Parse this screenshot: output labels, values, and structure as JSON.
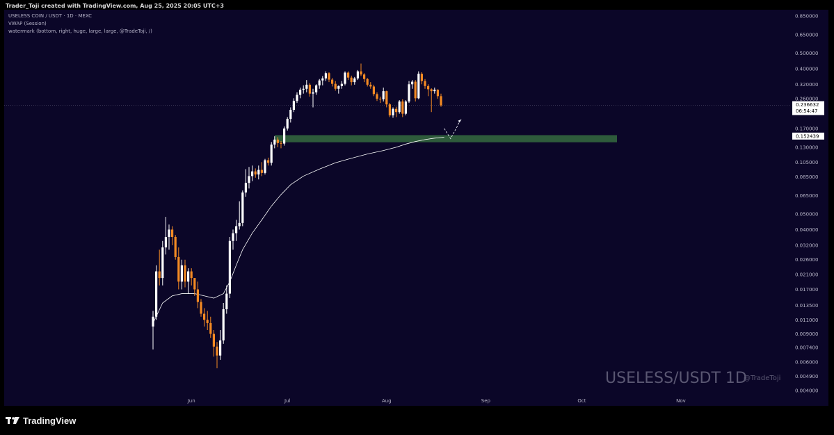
{
  "header": {
    "credit": "Trader_Toji created with TradingView.com, Aug 25, 2025 20:05 UTC+3"
  },
  "legend": {
    "line1": "USELESS COIN / USDT · 1D · MEXC",
    "line2": "VWAP (Session)",
    "line3": "watermark (bottom, right, huge, large, large, @TradeToji, /)"
  },
  "watermark": {
    "main": "USELESS/USDT 1D",
    "handle": "@TradeToji"
  },
  "branding": {
    "logo_text": "TradingView"
  },
  "price_labels": {
    "current": "0.236632",
    "countdown": "06:54:47",
    "level": "0.152439"
  },
  "colors": {
    "background": "#0b0628",
    "up": "#ffffff",
    "down": "#f48a23",
    "vwap": "#ffffff",
    "zone": "#2e5b3b",
    "axis_text": "#b8b6c8"
  },
  "chart_data": {
    "type": "candlestick",
    "symbol": "USELESS COIN / USDT",
    "timeframe": "1D",
    "exchange": "MEXC",
    "y_scale": "log",
    "y_ticks": [
      0.85,
      0.65,
      0.5,
      0.4,
      0.32,
      0.26,
      0.17,
      0.13,
      0.105,
      0.085,
      0.065,
      0.05,
      0.04,
      0.032,
      0.026,
      0.021,
      0.017,
      0.0135,
      0.011,
      0.009,
      0.0074,
      0.006,
      0.0049,
      0.004
    ],
    "y_tick_labels": [
      "0.850000",
      "0.650000",
      "0.500000",
      "0.400000",
      "0.320000",
      "0.260000",
      "0.170000",
      "0.130000",
      "0.105000",
      "0.085000",
      "0.065000",
      "0.050000",
      "0.040000",
      "0.032000",
      "0.026000",
      "0.021000",
      "0.017000",
      "0.013500",
      "0.011000",
      "0.009000",
      "0.007400",
      "0.006000",
      "0.004900",
      "0.004000"
    ],
    "x_tick_labels": [
      "Jun",
      "Jul",
      "Aug",
      "Sep",
      "Oct",
      "Nov"
    ],
    "x_range": [
      "2025-05-20",
      "2025-11-21"
    ],
    "first_date": "2025-05-20",
    "candles": [
      [
        0.01,
        0.0125,
        0.0072,
        0.0115
      ],
      [
        0.0115,
        0.024,
        0.011,
        0.022
      ],
      [
        0.022,
        0.03,
        0.018,
        0.02
      ],
      [
        0.02,
        0.034,
        0.018,
        0.031
      ],
      [
        0.031,
        0.048,
        0.028,
        0.036
      ],
      [
        0.036,
        0.043,
        0.03,
        0.04
      ],
      [
        0.04,
        0.042,
        0.032,
        0.036
      ],
      [
        0.036,
        0.037,
        0.026,
        0.027
      ],
      [
        0.027,
        0.031,
        0.017,
        0.019
      ],
      [
        0.019,
        0.026,
        0.017,
        0.024
      ],
      [
        0.024,
        0.026,
        0.0175,
        0.019
      ],
      [
        0.019,
        0.023,
        0.016,
        0.022
      ],
      [
        0.022,
        0.023,
        0.018,
        0.02
      ],
      [
        0.02,
        0.02,
        0.0155,
        0.017
      ],
      [
        0.017,
        0.019,
        0.013,
        0.0142
      ],
      [
        0.0142,
        0.0148,
        0.0115,
        0.012
      ],
      [
        0.012,
        0.013,
        0.01,
        0.011
      ],
      [
        0.011,
        0.0125,
        0.0095,
        0.0105
      ],
      [
        0.0105,
        0.0115,
        0.0085,
        0.009
      ],
      [
        0.009,
        0.0095,
        0.0065,
        0.0075
      ],
      [
        0.0075,
        0.008,
        0.0055,
        0.0066
      ],
      [
        0.0066,
        0.0095,
        0.0062,
        0.0082
      ],
      [
        0.0082,
        0.014,
        0.0078,
        0.0128
      ],
      [
        0.0128,
        0.018,
        0.012,
        0.016
      ],
      [
        0.016,
        0.036,
        0.015,
        0.034
      ],
      [
        0.034,
        0.04,
        0.03,
        0.038
      ],
      [
        0.038,
        0.046,
        0.034,
        0.042
      ],
      [
        0.042,
        0.06,
        0.04,
        0.044
      ],
      [
        0.044,
        0.07,
        0.042,
        0.068
      ],
      [
        0.068,
        0.095,
        0.064,
        0.078
      ],
      [
        0.078,
        0.098,
        0.072,
        0.086
      ],
      [
        0.086,
        0.1,
        0.08,
        0.092
      ],
      [
        0.092,
        0.096,
        0.084,
        0.088
      ],
      [
        0.088,
        0.1,
        0.082,
        0.094
      ],
      [
        0.094,
        0.105,
        0.086,
        0.09
      ],
      [
        0.09,
        0.11,
        0.088,
        0.108
      ],
      [
        0.108,
        0.112,
        0.1,
        0.104
      ],
      [
        0.104,
        0.14,
        0.1,
        0.135
      ],
      [
        0.135,
        0.152,
        0.128,
        0.145
      ],
      [
        0.145,
        0.15,
        0.13,
        0.138
      ],
      [
        0.138,
        0.142,
        0.128,
        0.137
      ],
      [
        0.137,
        0.175,
        0.133,
        0.17
      ],
      [
        0.17,
        0.2,
        0.165,
        0.195
      ],
      [
        0.195,
        0.23,
        0.185,
        0.222
      ],
      [
        0.222,
        0.262,
        0.215,
        0.252
      ],
      [
        0.252,
        0.285,
        0.245,
        0.275
      ],
      [
        0.275,
        0.305,
        0.262,
        0.296
      ],
      [
        0.296,
        0.315,
        0.28,
        0.3
      ],
      [
        0.3,
        0.34,
        0.285,
        0.318
      ],
      [
        0.318,
        0.325,
        0.268,
        0.28
      ],
      [
        0.28,
        0.3,
        0.23,
        0.285
      ],
      [
        0.285,
        0.32,
        0.275,
        0.315
      ],
      [
        0.315,
        0.345,
        0.3,
        0.338
      ],
      [
        0.338,
        0.36,
        0.315,
        0.348
      ],
      [
        0.348,
        0.385,
        0.335,
        0.375
      ],
      [
        0.375,
        0.38,
        0.33,
        0.342
      ],
      [
        0.342,
        0.35,
        0.31,
        0.322
      ],
      [
        0.322,
        0.335,
        0.292,
        0.3
      ],
      [
        0.3,
        0.315,
        0.28,
        0.312
      ],
      [
        0.312,
        0.335,
        0.3,
        0.322
      ],
      [
        0.322,
        0.385,
        0.315,
        0.378
      ],
      [
        0.378,
        0.385,
        0.34,
        0.352
      ],
      [
        0.352,
        0.362,
        0.315,
        0.33
      ],
      [
        0.33,
        0.355,
        0.318,
        0.348
      ],
      [
        0.348,
        0.392,
        0.34,
        0.385
      ],
      [
        0.385,
        0.43,
        0.36,
        0.368
      ],
      [
        0.368,
        0.375,
        0.33,
        0.345
      ],
      [
        0.345,
        0.35,
        0.31,
        0.318
      ],
      [
        0.318,
        0.33,
        0.3,
        0.31
      ],
      [
        0.31,
        0.318,
        0.27,
        0.278
      ],
      [
        0.278,
        0.285,
        0.252,
        0.26
      ],
      [
        0.26,
        0.268,
        0.245,
        0.258
      ],
      [
        0.258,
        0.305,
        0.25,
        0.29
      ],
      [
        0.29,
        0.292,
        0.23,
        0.24
      ],
      [
        0.24,
        0.245,
        0.2,
        0.205
      ],
      [
        0.205,
        0.23,
        0.198,
        0.225
      ],
      [
        0.225,
        0.232,
        0.2,
        0.215
      ],
      [
        0.215,
        0.255,
        0.21,
        0.25
      ],
      [
        0.25,
        0.258,
        0.2,
        0.21
      ],
      [
        0.21,
        0.255,
        0.205,
        0.25
      ],
      [
        0.25,
        0.335,
        0.245,
        0.32
      ],
      [
        0.32,
        0.34,
        0.3,
        0.332
      ],
      [
        0.332,
        0.34,
        0.25,
        0.262
      ],
      [
        0.262,
        0.385,
        0.258,
        0.372
      ],
      [
        0.372,
        0.38,
        0.32,
        0.335
      ],
      [
        0.335,
        0.345,
        0.3,
        0.312
      ],
      [
        0.312,
        0.32,
        0.27,
        0.298
      ],
      [
        0.298,
        0.302,
        0.215,
        0.29
      ],
      [
        0.29,
        0.305,
        0.28,
        0.296
      ],
      [
        0.296,
        0.298,
        0.26,
        0.27
      ],
      [
        0.27,
        0.28,
        0.232,
        0.2366
      ]
    ],
    "vwap": [
      [
        0,
        0.0105
      ],
      [
        3,
        0.014
      ],
      [
        6,
        0.0155
      ],
      [
        9,
        0.016
      ],
      [
        13,
        0.016
      ],
      [
        16,
        0.0155
      ],
      [
        19,
        0.015
      ],
      [
        22,
        0.016
      ],
      [
        24,
        0.019
      ],
      [
        26,
        0.024
      ],
      [
        28,
        0.03
      ],
      [
        31,
        0.038
      ],
      [
        34,
        0.046
      ],
      [
        37,
        0.056
      ],
      [
        40,
        0.066
      ],
      [
        43,
        0.076
      ],
      [
        47,
        0.086
      ],
      [
        52,
        0.095
      ],
      [
        57,
        0.104
      ],
      [
        62,
        0.111
      ],
      [
        67,
        0.118
      ],
      [
        72,
        0.124
      ],
      [
        76,
        0.13
      ],
      [
        79,
        0.136
      ],
      [
        82,
        0.141
      ],
      [
        85,
        0.145
      ],
      [
        88,
        0.148
      ],
      [
        91,
        0.15
      ]
    ],
    "support_zone": {
      "low": 0.1395,
      "high": 0.1545,
      "from_day": 38,
      "to_day": 145
    },
    "projection": [
      [
        91,
        0.17
      ],
      [
        93,
        0.147
      ],
      [
        95,
        0.174
      ],
      [
        96,
        0.192
      ]
    ]
  }
}
